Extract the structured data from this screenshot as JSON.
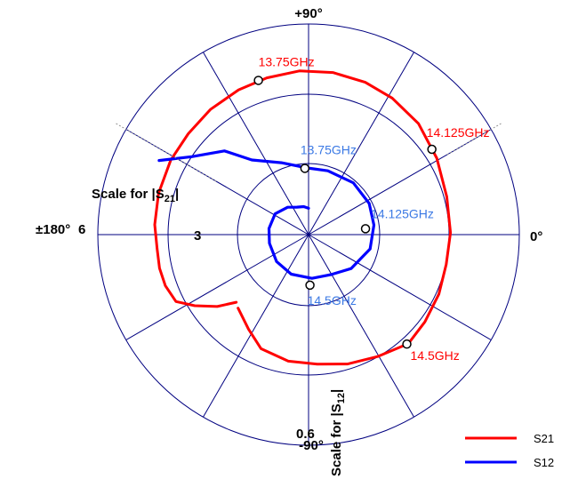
{
  "chart_data": {
    "type": "polar",
    "angle_labels": {
      "top": "+90°",
      "right": "0°",
      "left": "±180°",
      "bottom": "-90°"
    },
    "scale_labels": {
      "s21_axis": "Scale for |S21|",
      "s21_outer": "6",
      "s21_mid": "3",
      "s12_axis": "Scale for |S12|",
      "s12_outer": "0.6"
    },
    "colors": {
      "s21": "#ff0000",
      "s12": "#0000ff",
      "grid": "#000080",
      "s12_label": "#3b79e4"
    },
    "series": [
      {
        "name": "S21",
        "color": "#ff0000",
        "magnitude_scale": 6,
        "points": [
          {
            "angle": -136.9,
            "mag": 2.82
          },
          {
            "angle": -141.8,
            "mag": 3.31
          },
          {
            "angle": -148.0,
            "mag": 3.82
          },
          {
            "angle": -153.2,
            "mag": 4.23
          },
          {
            "angle": -160.4,
            "mag": 4.33
          },
          {
            "angle": -167.3,
            "mag": 4.35
          },
          {
            "angle": -174.6,
            "mag": 4.33
          },
          {
            "angle": 176.3,
            "mag": 4.39
          },
          {
            "angle": 164.6,
            "mag": 4.43
          },
          {
            "angle": 151.6,
            "mag": 4.46
          },
          {
            "angle": 140.0,
            "mag": 4.47
          },
          {
            "angle": 128.1,
            "mag": 4.53
          },
          {
            "angle": 115.8,
            "mag": 4.58
          },
          {
            "angle": 104.9,
            "mag": 4.62
          },
          {
            "angle": 93.2,
            "mag": 4.67
          },
          {
            "angle": 81.5,
            "mag": 4.67
          },
          {
            "angle": 69.6,
            "mag": 4.63
          },
          {
            "angle": 58.5,
            "mag": 4.56
          },
          {
            "angle": 45.3,
            "mag": 4.45
          },
          {
            "angle": 30.8,
            "mag": 4.25
          },
          {
            "angle": 15.4,
            "mag": 4.08
          },
          {
            "angle": 0.8,
            "mag": 4.04
          },
          {
            "angle": -12.2,
            "mag": 4.01
          },
          {
            "angle": -24.6,
            "mag": 4.08
          },
          {
            "angle": -36.9,
            "mag": 4.14
          },
          {
            "angle": -47.6,
            "mag": 4.21
          },
          {
            "angle": -60.5,
            "mag": 3.99
          },
          {
            "angle": -73.2,
            "mag": 3.85
          },
          {
            "angle": -86.2,
            "mag": 3.7
          },
          {
            "angle": -99.1,
            "mag": 3.65
          },
          {
            "angle": -112.6,
            "mag": 3.52
          },
          {
            "angle": -122.4,
            "mag": 3.19
          },
          {
            "angle": -133.8,
            "mag": 2.9
          }
        ],
        "markers": [
          {
            "label": "13.75GHz",
            "angle": 108.0,
            "mag": 4.62
          },
          {
            "label": "14.125GHz",
            "angle": 34.7,
            "mag": 4.27
          },
          {
            "label": "14.5GHz",
            "angle": -48.1,
            "mag": 4.19
          }
        ]
      },
      {
        "name": "S12",
        "color": "#0000ff",
        "magnitude_scale": 0.6,
        "points": [
          {
            "angle": 153.6,
            "mag": 0.475
          },
          {
            "angle": 146.3,
            "mag": 0.4
          },
          {
            "angle": 135.1,
            "mag": 0.338
          },
          {
            "angle": 127.2,
            "mag": 0.267
          },
          {
            "angle": 110.7,
            "mag": 0.219
          },
          {
            "angle": 91.1,
            "mag": 0.19
          },
          {
            "angle": 73.2,
            "mag": 0.19
          },
          {
            "angle": 49.2,
            "mag": 0.195
          },
          {
            "angle": 27.2,
            "mag": 0.194
          },
          {
            "angle": 8.4,
            "mag": 0.188
          },
          {
            "angle": -13.1,
            "mag": 0.18
          },
          {
            "angle": -38.6,
            "mag": 0.155
          },
          {
            "angle": -60.3,
            "mag": 0.131
          },
          {
            "angle": -85.6,
            "mag": 0.125
          },
          {
            "angle": -113.7,
            "mag": 0.123
          },
          {
            "angle": -139.9,
            "mag": 0.119
          },
          {
            "angle": -167.6,
            "mag": 0.114
          },
          {
            "angle": 171.2,
            "mag": 0.114
          },
          {
            "angle": 148.1,
            "mag": 0.112
          },
          {
            "angle": 127.3,
            "mag": 0.098
          },
          {
            "angle": 113.2,
            "mag": 0.085
          },
          {
            "angle": 99.7,
            "mag": 0.081
          },
          {
            "angle": 90.0,
            "mag": 0.075
          }
        ],
        "markers": [
          {
            "label": "13.75GHz",
            "angle": 93.2,
            "mag": 0.189
          },
          {
            "label": "14.125GHz",
            "angle": 5.9,
            "mag": 0.163
          },
          {
            "label": "14.5GHz",
            "angle": -88.4,
            "mag": 0.144
          }
        ]
      }
    ],
    "legend": {
      "position": "bottom-right",
      "entries": [
        "S21",
        "S12"
      ]
    }
  }
}
